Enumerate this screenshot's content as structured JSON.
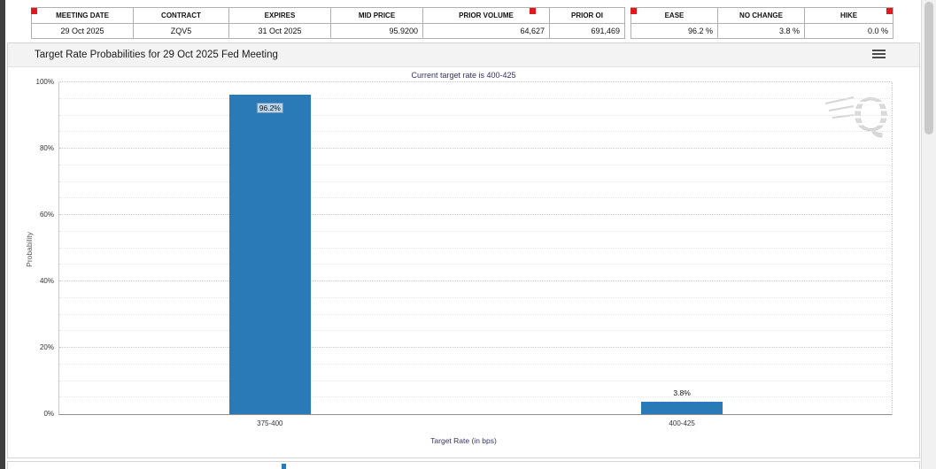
{
  "contract_table": {
    "headers": [
      "MEETING DATE",
      "CONTRACT",
      "EXPIRES",
      "MID PRICE",
      "PRIOR VOLUME",
      "PRIOR OI"
    ],
    "row": [
      "29 Oct 2025",
      "ZQV5",
      "31 Oct 2025",
      "95.9200",
      "64,627",
      "691,469"
    ]
  },
  "summary_table": {
    "headers": [
      "EASE",
      "NO CHANGE",
      "HIKE"
    ],
    "row": [
      "96.2 %",
      "3.8 %",
      "0.0 %"
    ]
  },
  "chart": {
    "title": "Target Rate Probabilities for 29 Oct 2025 Fed Meeting",
    "menu_icon": "hamburger-menu-icon",
    "watermark_letter": "Q"
  },
  "chart_data": {
    "type": "bar",
    "title": "Target Rate Probabilities for 29 Oct 2025 Fed Meeting",
    "subtitle": "Current target rate is 400-425",
    "categories": [
      "375-400",
      "400-425"
    ],
    "values": [
      96.2,
      3.8
    ],
    "bar_labels": [
      "96.2%",
      "3.8%"
    ],
    "xlabel": "Target Rate (in bps)",
    "ylabel": "Probability",
    "ylim": [
      0,
      100
    ],
    "yticks": [
      "0%",
      "20%",
      "40%",
      "60%",
      "80%",
      "100%"
    ],
    "bar_color": "#2a7ab8",
    "grid": true,
    "legend": false
  }
}
